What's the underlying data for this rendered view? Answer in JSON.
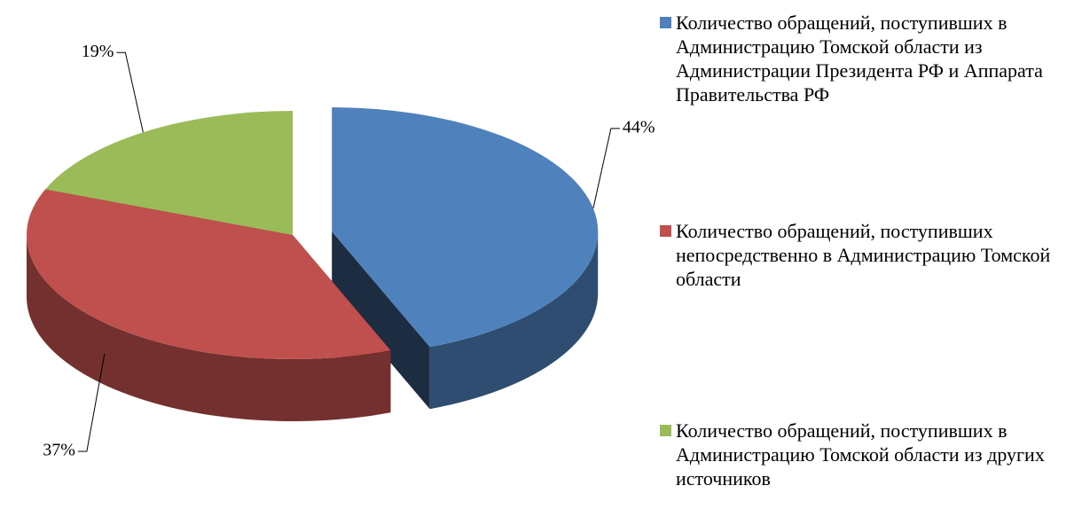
{
  "chart_data": {
    "type": "pie",
    "categories": [
      "Количество обращений, поступивших в Администрацию Томской области из Администрации Президента РФ и Аппарата Правительства РФ",
      "Количество обращений, поступивших непосредственно в Администрацию Томской области",
      "Количество обращений, поступивших в Администрацию Томской области из других источников"
    ],
    "values": [
      44,
      37,
      19
    ],
    "value_labels": [
      "44%",
      "37%",
      "19%"
    ],
    "colors": [
      "#4f81bd",
      "#c0504d",
      "#9bbb59"
    ],
    "exploded": [
      true,
      false,
      false
    ],
    "legend": "right"
  }
}
